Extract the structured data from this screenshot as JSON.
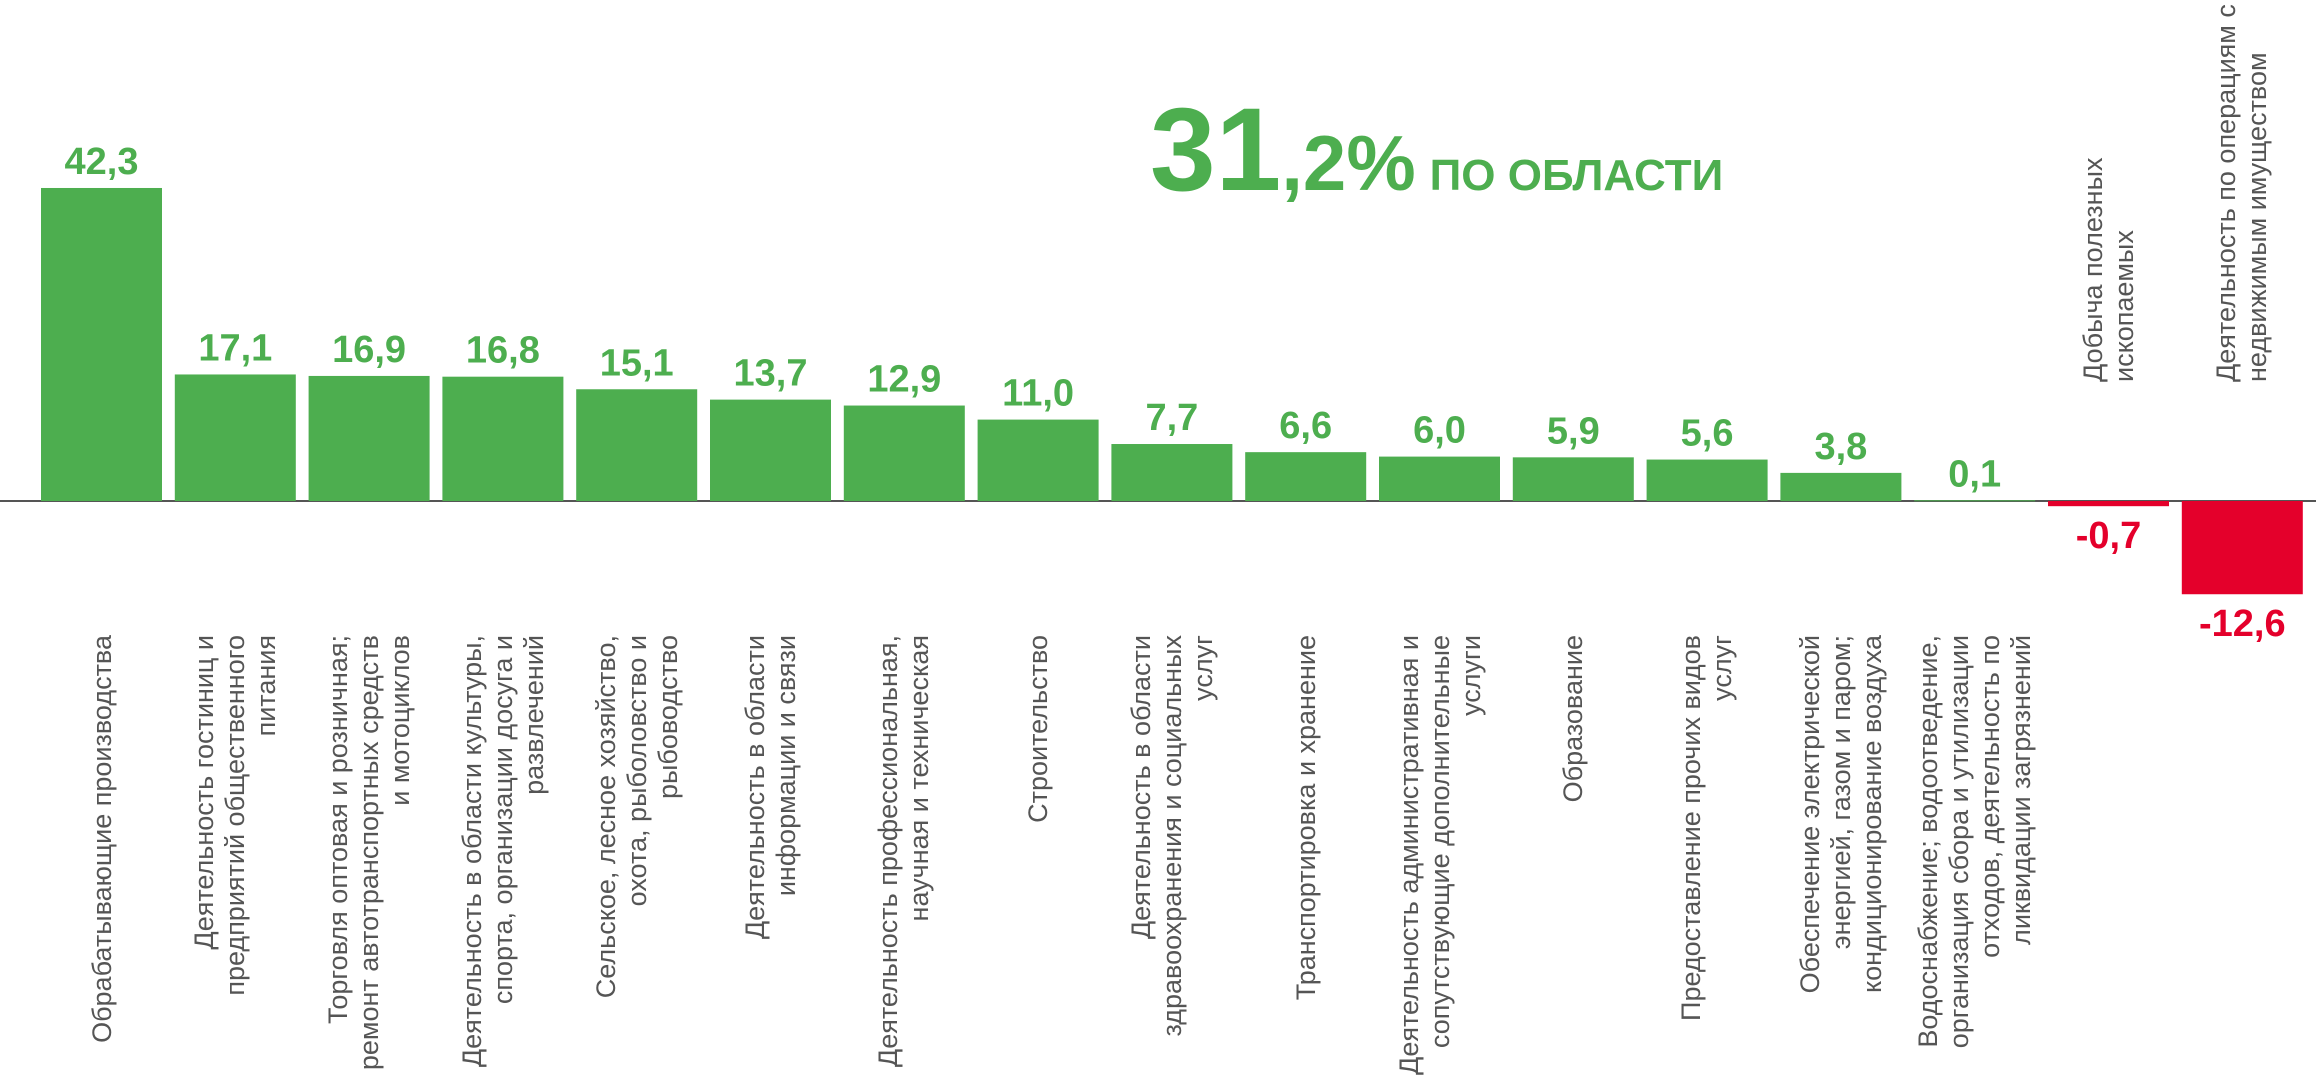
{
  "chart_data": {
    "type": "bar",
    "annotation": [
      "31",
      ",2%",
      "ПО ОБЛАСТИ"
    ],
    "categories": [
      "Обрабатывающие производства",
      "Деятельность гостиниц и предприятий общественного питания",
      "Торговля оптовая и розничная; ремонт автотранспортных средств и мотоциклов",
      "Деятельность в области культуры, спорта, организации досуга и развлечений",
      "Сельское, лесное хозяйство, охота, рыболовство и рыбоводство",
      "Деятельность в области информации и связи",
      "Деятельность профессиональная, научная и техническая",
      "Строительство",
      "Деятельность в области здравоохранения и социальных услуг",
      "Транспортировка и хранение",
      "Деятельность административная и сопутствующие дополнительные услуги",
      "Образование",
      "Предоставление прочих видов услуг",
      "Обеспечение электрической энергией, газом и паром; кондиционирование воздуха",
      "Водоснабжение; водоотведение, организация сбора и утилизации отходов, деятельность по ликвидации загрязнений",
      "Добыча полезных ископаемых",
      "Деятельность по операциям с недвижимым имуществом"
    ],
    "values": [
      42.3,
      17.1,
      16.9,
      16.8,
      15.1,
      13.7,
      12.9,
      11.0,
      7.7,
      6.6,
      6.0,
      5.9,
      5.6,
      3.8,
      0.1,
      -0.7,
      -12.6
    ],
    "value_labels": [
      "42,3",
      "17,1",
      "16,9",
      "16,8",
      "15,1",
      "13,7",
      "12,9",
      "11,0",
      "7,7",
      "6,6",
      "6,0",
      "5,9",
      "5,6",
      "3,8",
      "0,1",
      "-0,7",
      "-12,6"
    ],
    "color": "#4dae4f",
    "negative_color": "#e4002b",
    "ylim": [
      -15,
      55
    ]
  }
}
